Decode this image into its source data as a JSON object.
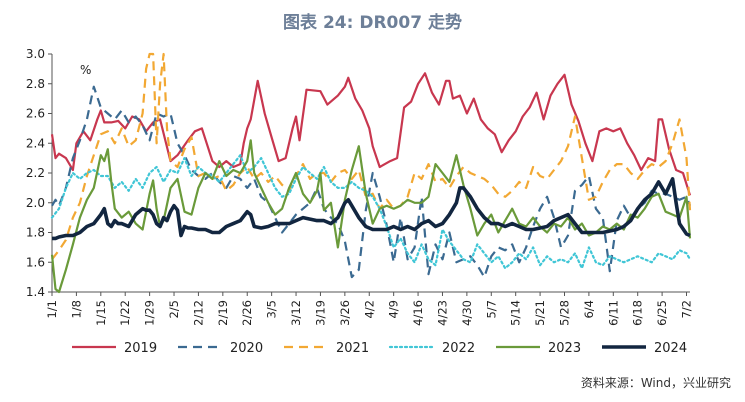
{
  "title": "图表 24: DR007 走势",
  "source": "资料来源：Wind，兴业研究",
  "chart_data": {
    "type": "line",
    "unit_label": "%",
    "ylim": [
      1.4,
      3.0
    ],
    "yticks": [
      1.4,
      1.6,
      1.8,
      2.0,
      2.2,
      2.4,
      2.6,
      2.8,
      3.0
    ],
    "xlim": [
      1,
      184
    ],
    "xtick_labels": [
      "1/1",
      "1/8",
      "1/15",
      "1/22",
      "1/29",
      "2/5",
      "2/12",
      "2/19",
      "2/26",
      "3/5",
      "3/12",
      "3/19",
      "3/26",
      "4/2",
      "4/9",
      "4/16",
      "4/23",
      "4/30",
      "5/7",
      "5/14",
      "5/21",
      "5/28",
      "6/4",
      "6/11",
      "6/18",
      "6/25",
      "7/2"
    ],
    "xtick_days": [
      1,
      8,
      15,
      22,
      29,
      36,
      43,
      50,
      57,
      64,
      71,
      78,
      85,
      92,
      99,
      106,
      113,
      120,
      127,
      134,
      141,
      148,
      155,
      162,
      169,
      176,
      183
    ],
    "grid": false,
    "legend_position": "bottom",
    "series": [
      {
        "name": "2019",
        "color": "#c8374f",
        "style": "solid",
        "width": 2.2,
        "x": [
          1,
          2,
          3,
          5,
          7,
          8,
          10,
          12,
          14,
          15,
          16,
          18,
          20,
          22,
          24,
          26,
          28,
          30,
          32,
          35,
          37,
          40,
          42,
          44,
          47,
          49,
          51,
          53,
          55,
          56,
          57,
          58,
          60,
          62,
          64,
          66,
          68,
          70,
          71,
          72,
          74,
          78,
          80,
          83,
          85,
          86,
          88,
          90,
          92,
          93,
          95,
          98,
          100,
          102,
          104,
          106,
          108,
          110,
          112,
          114,
          115,
          116,
          118,
          120,
          122,
          124,
          126,
          128,
          130,
          132,
          134,
          136,
          138,
          140,
          142,
          144,
          146,
          148,
          150,
          152,
          154,
          156,
          158,
          160,
          162,
          164,
          166,
          168,
          170,
          172,
          174,
          175,
          176,
          178,
          180,
          182,
          184
        ],
        "y": [
          2.46,
          2.3,
          2.33,
          2.3,
          2.22,
          2.4,
          2.48,
          2.42,
          2.56,
          2.62,
          2.54,
          2.54,
          2.55,
          2.5,
          2.58,
          2.56,
          2.48,
          2.54,
          2.56,
          2.28,
          2.32,
          2.42,
          2.48,
          2.5,
          2.28,
          2.24,
          2.28,
          2.24,
          2.26,
          2.4,
          2.5,
          2.56,
          2.82,
          2.6,
          2.44,
          2.28,
          2.3,
          2.5,
          2.58,
          2.42,
          2.76,
          2.75,
          2.66,
          2.72,
          2.78,
          2.84,
          2.7,
          2.62,
          2.5,
          2.38,
          2.24,
          2.28,
          2.3,
          2.64,
          2.68,
          2.8,
          2.87,
          2.74,
          2.66,
          2.82,
          2.82,
          2.7,
          2.72,
          2.6,
          2.7,
          2.56,
          2.5,
          2.46,
          2.34,
          2.42,
          2.48,
          2.58,
          2.64,
          2.74,
          2.56,
          2.72,
          2.8,
          2.86,
          2.66,
          2.55,
          2.4,
          2.28,
          2.48,
          2.5,
          2.48,
          2.5,
          2.4,
          2.32,
          2.22,
          2.3,
          2.28,
          2.56,
          2.56,
          2.36,
          2.22,
          2.2,
          2.05
        ]
      },
      {
        "name": "2020",
        "color": "#3b6a91",
        "style": "dash",
        "width": 2.2,
        "x": [
          1,
          2,
          3,
          5,
          7,
          9,
          11,
          13,
          15,
          17,
          19,
          21,
          23,
          25,
          27,
          29,
          31,
          33,
          35,
          37,
          39,
          41,
          43,
          45,
          47,
          49,
          51,
          53,
          55,
          57,
          59,
          61,
          63,
          65,
          67,
          69,
          71,
          73,
          75,
          77,
          79,
          81,
          83,
          85,
          87,
          89,
          91,
          93,
          95,
          97,
          99,
          101,
          103,
          105,
          107,
          109,
          111,
          113,
          115,
          117,
          119,
          121,
          123,
          125,
          127,
          129,
          131,
          133,
          135,
          137,
          139,
          141,
          143,
          145,
          147,
          149,
          151,
          153,
          155,
          157,
          159,
          161,
          163,
          165,
          167,
          169,
          171,
          173,
          175,
          177,
          179,
          181,
          183,
          184
        ],
        "y": [
          1.98,
          2.02,
          1.98,
          2.1,
          2.3,
          2.42,
          2.56,
          2.78,
          2.64,
          2.6,
          2.56,
          2.62,
          2.54,
          2.58,
          2.52,
          2.42,
          2.6,
          2.58,
          2.6,
          2.4,
          2.32,
          2.22,
          2.18,
          2.16,
          2.2,
          2.14,
          2.1,
          2.18,
          2.16,
          2.1,
          2.16,
          2.04,
          2.0,
          1.9,
          1.8,
          1.86,
          1.92,
          1.96,
          2.0,
          2.1,
          1.96,
          1.9,
          1.86,
          1.74,
          1.5,
          1.55,
          1.95,
          2.2,
          2.04,
          1.85,
          1.6,
          1.9,
          1.62,
          1.7,
          2.04,
          1.52,
          1.72,
          1.62,
          1.8,
          1.6,
          1.62,
          1.64,
          1.58,
          1.5,
          1.64,
          1.7,
          1.68,
          1.72,
          1.6,
          1.7,
          1.84,
          1.96,
          2.04,
          1.9,
          1.7,
          1.78,
          2.08,
          2.12,
          2.18,
          1.96,
          1.9,
          1.54,
          1.88,
          1.98,
          1.9,
          1.96,
          2.0,
          2.08,
          2.06,
          2.06,
          2.04,
          2.02,
          2.04,
          1.98
        ]
      },
      {
        "name": "2021",
        "color": "#f2a833",
        "style": "dash",
        "width": 2.2,
        "x": [
          1,
          3,
          5,
          7,
          9,
          11,
          13,
          15,
          17,
          19,
          21,
          23,
          25,
          27,
          28,
          29,
          30,
          31,
          32,
          33,
          34,
          35,
          37,
          39,
          41,
          43,
          45,
          47,
          49,
          51,
          53,
          55,
          57,
          59,
          61,
          63,
          65,
          67,
          69,
          71,
          73,
          75,
          77,
          79,
          81,
          83,
          85,
          87,
          89,
          91,
          93,
          95,
          97,
          99,
          101,
          103,
          105,
          107,
          109,
          111,
          113,
          115,
          117,
          119,
          121,
          123,
          125,
          127,
          129,
          131,
          133,
          135,
          137,
          139,
          141,
          143,
          145,
          147,
          149,
          151,
          153,
          155,
          157,
          159,
          161,
          163,
          165,
          167,
          169,
          171,
          173,
          175,
          177,
          179,
          181,
          183,
          184
        ],
        "y": [
          1.62,
          1.68,
          1.75,
          1.9,
          2.0,
          2.18,
          2.32,
          2.46,
          2.48,
          2.4,
          2.5,
          2.38,
          2.42,
          2.6,
          2.9,
          3.05,
          3.05,
          2.4,
          2.8,
          3.0,
          2.5,
          2.28,
          2.24,
          2.36,
          2.44,
          2.18,
          2.2,
          2.16,
          2.18,
          2.08,
          2.12,
          2.2,
          2.24,
          2.16,
          2.2,
          2.14,
          2.18,
          2.12,
          2.08,
          2.18,
          2.26,
          2.16,
          2.2,
          2.2,
          2.14,
          2.2,
          2.22,
          2.16,
          2.22,
          2.04,
          2.06,
          1.96,
          2.02,
          1.96,
          1.98,
          2.04,
          2.2,
          2.16,
          2.26,
          2.14,
          2.16,
          2.1,
          2.18,
          2.24,
          2.2,
          2.18,
          2.16,
          2.12,
          2.06,
          2.04,
          2.08,
          2.14,
          2.1,
          2.24,
          2.18,
          2.16,
          2.22,
          2.28,
          2.38,
          2.58,
          2.3,
          2.02,
          2.04,
          2.14,
          2.22,
          2.26,
          2.26,
          2.2,
          2.16,
          2.22,
          2.26,
          2.24,
          2.28,
          2.4,
          2.56,
          2.3,
          1.95
        ]
      },
      {
        "name": "2022",
        "color": "#40c6d6",
        "style": "dot",
        "width": 2.2,
        "x": [
          1,
          3,
          5,
          7,
          9,
          11,
          13,
          15,
          17,
          19,
          21,
          23,
          25,
          27,
          29,
          31,
          33,
          35,
          37,
          39,
          41,
          43,
          45,
          47,
          49,
          51,
          53,
          55,
          57,
          59,
          61,
          63,
          65,
          67,
          69,
          71,
          73,
          75,
          77,
          79,
          81,
          83,
          85,
          87,
          89,
          91,
          93,
          95,
          97,
          99,
          101,
          103,
          105,
          107,
          109,
          111,
          113,
          115,
          117,
          119,
          121,
          123,
          125,
          127,
          129,
          131,
          133,
          135,
          137,
          139,
          141,
          143,
          145,
          147,
          149,
          151,
          153,
          155,
          157,
          159,
          161,
          163,
          165,
          167,
          169,
          171,
          173,
          175,
          177,
          179,
          181,
          183,
          184
        ],
        "y": [
          1.9,
          1.96,
          2.1,
          2.2,
          2.16,
          2.2,
          2.22,
          2.18,
          2.18,
          2.1,
          2.14,
          2.08,
          2.16,
          2.1,
          2.2,
          2.24,
          2.14,
          2.22,
          2.2,
          2.3,
          2.18,
          2.24,
          2.2,
          2.18,
          2.14,
          2.2,
          2.26,
          2.32,
          2.2,
          2.24,
          2.3,
          2.2,
          2.1,
          2.04,
          2.06,
          2.16,
          2.24,
          2.2,
          2.16,
          2.24,
          2.14,
          2.1,
          2.1,
          2.14,
          2.1,
          2.08,
          2.04,
          1.96,
          1.84,
          1.7,
          1.76,
          1.66,
          1.6,
          1.72,
          1.62,
          1.58,
          1.82,
          1.74,
          1.68,
          1.62,
          1.6,
          1.72,
          1.66,
          1.6,
          1.64,
          1.56,
          1.6,
          1.66,
          1.62,
          1.7,
          1.58,
          1.64,
          1.6,
          1.62,
          1.6,
          1.66,
          1.56,
          1.7,
          1.6,
          1.58,
          1.64,
          1.62,
          1.6,
          1.62,
          1.64,
          1.62,
          1.6,
          1.66,
          1.64,
          1.62,
          1.68,
          1.66,
          1.62
        ]
      },
      {
        "name": "2023",
        "color": "#6a9a3a",
        "style": "solid",
        "width": 2.2,
        "x": [
          1,
          2,
          3,
          5,
          7,
          9,
          11,
          13,
          15,
          16,
          17,
          18,
          19,
          21,
          23,
          25,
          27,
          29,
          30,
          31,
          32,
          33,
          35,
          37,
          39,
          41,
          43,
          45,
          47,
          49,
          51,
          53,
          55,
          57,
          58,
          59,
          61,
          63,
          65,
          67,
          69,
          71,
          73,
          75,
          77,
          78,
          79,
          81,
          83,
          85,
          87,
          89,
          91,
          93,
          95,
          97,
          99,
          101,
          103,
          105,
          107,
          109,
          111,
          113,
          115,
          117,
          119,
          121,
          123,
          125,
          127,
          129,
          131,
          133,
          135,
          137,
          139,
          141,
          143,
          145,
          147,
          149,
          151,
          153,
          155,
          157,
          159,
          161,
          163,
          165,
          167,
          169,
          171,
          173,
          175,
          177,
          179,
          181,
          183,
          184
        ],
        "y": [
          1.65,
          1.42,
          1.38,
          1.55,
          1.72,
          1.9,
          2.02,
          2.1,
          2.32,
          2.28,
          2.36,
          2.14,
          1.96,
          1.9,
          1.94,
          1.86,
          1.82,
          2.06,
          2.15,
          1.96,
          1.84,
          1.88,
          2.1,
          2.16,
          1.94,
          1.92,
          2.1,
          2.2,
          2.16,
          2.28,
          2.18,
          2.22,
          2.2,
          2.28,
          2.42,
          2.2,
          2.1,
          2.0,
          1.92,
          1.96,
          2.1,
          2.2,
          2.06,
          2.0,
          2.08,
          2.2,
          1.95,
          2.0,
          1.7,
          2.02,
          2.22,
          2.38,
          2.06,
          1.86,
          1.96,
          1.98,
          1.96,
          1.98,
          2.02,
          2.0,
          2.0,
          2.04,
          2.26,
          2.2,
          2.14,
          2.32,
          2.12,
          1.96,
          1.78,
          1.86,
          1.92,
          1.8,
          1.88,
          1.96,
          1.86,
          1.84,
          1.9,
          1.84,
          1.8,
          1.86,
          1.84,
          1.9,
          1.82,
          1.86,
          1.78,
          1.8,
          1.84,
          1.82,
          1.86,
          1.82,
          1.92,
          1.9,
          1.96,
          2.04,
          2.06,
          1.94,
          1.92,
          1.9,
          2.04,
          1.76
        ]
      },
      {
        "name": "2024",
        "color": "#122640",
        "style": "solid",
        "width": 3.6,
        "x": [
          1,
          2,
          3,
          5,
          7,
          9,
          11,
          13,
          15,
          16,
          17,
          18,
          19,
          20,
          21,
          23,
          25,
          27,
          28,
          29,
          30,
          31,
          32,
          33,
          34,
          35,
          36,
          37,
          38,
          39,
          40,
          41,
          43,
          45,
          47,
          49,
          51,
          53,
          55,
          57,
          58,
          59,
          61,
          63,
          65,
          67,
          69,
          71,
          73,
          75,
          77,
          79,
          81,
          83,
          85,
          86,
          87,
          89,
          91,
          93,
          95,
          97,
          99,
          101,
          103,
          105,
          107,
          109,
          111,
          113,
          115,
          117,
          118,
          119,
          121,
          123,
          125,
          127,
          129,
          131,
          133,
          135,
          137,
          139,
          141,
          143,
          145,
          147,
          149,
          151,
          153,
          155,
          157,
          159,
          161,
          163,
          165,
          167,
          169,
          171,
          173,
          175,
          177,
          179,
          180,
          181,
          183,
          184
        ],
        "y": [
          1.76,
          1.76,
          1.77,
          1.78,
          1.78,
          1.8,
          1.84,
          1.86,
          1.92,
          1.96,
          1.86,
          1.84,
          1.88,
          1.86,
          1.86,
          1.84,
          1.92,
          1.96,
          1.95,
          1.95,
          1.92,
          1.86,
          1.84,
          1.9,
          1.88,
          1.94,
          1.98,
          1.95,
          1.78,
          1.84,
          1.83,
          1.83,
          1.82,
          1.82,
          1.8,
          1.8,
          1.84,
          1.86,
          1.88,
          1.94,
          1.92,
          1.84,
          1.83,
          1.84,
          1.86,
          1.86,
          1.86,
          1.88,
          1.9,
          1.89,
          1.88,
          1.88,
          1.86,
          1.9,
          2.0,
          2.02,
          1.98,
          1.9,
          1.84,
          1.82,
          1.82,
          1.82,
          1.84,
          1.82,
          1.84,
          1.82,
          1.86,
          1.88,
          1.84,
          1.86,
          1.92,
          2.0,
          2.1,
          2.1,
          2.04,
          1.96,
          1.9,
          1.86,
          1.86,
          1.84,
          1.86,
          1.84,
          1.82,
          1.82,
          1.83,
          1.84,
          1.88,
          1.9,
          1.92,
          1.86,
          1.8,
          1.8,
          1.8,
          1.8,
          1.81,
          1.82,
          1.84,
          1.88,
          1.96,
          2.02,
          2.06,
          2.14,
          2.06,
          2.16,
          2.0,
          1.86,
          1.79,
          1.78
        ]
      }
    ]
  }
}
